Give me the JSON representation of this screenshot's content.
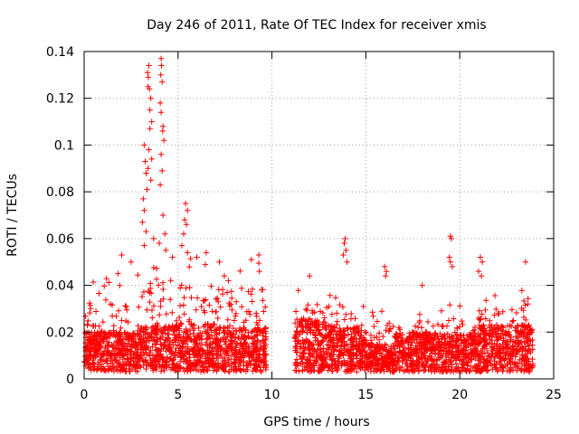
{
  "chart_data": {
    "type": "scatter",
    "title": "Day 246 of 2011, Rate Of TEC Index for receiver xmis",
    "xlabel": "GPS time / hours",
    "ylabel": "ROTI / TECUs",
    "xlim": [
      0,
      25
    ],
    "ylim": [
      0,
      0.14
    ],
    "xticks": [
      0,
      5,
      10,
      15,
      20,
      25
    ],
    "yticks": [
      0,
      0.02,
      0.04,
      0.06,
      0.08,
      0.1,
      0.12,
      0.14
    ],
    "xtick_labels": [
      "0",
      "5",
      "10",
      "15",
      "20",
      "25"
    ],
    "ytick_labels": [
      "0",
      "0.02",
      "0.04",
      "0.06",
      "0.08",
      "0.1",
      "0.12",
      "0.14"
    ],
    "grid": true,
    "marker": "+",
    "color": "#ff0000",
    "peaks": [
      {
        "x": 3.2,
        "y": 0.1
      },
      {
        "x": 3.25,
        "y": 0.093
      },
      {
        "x": 3.3,
        "y": 0.088
      },
      {
        "x": 3.15,
        "y": 0.077
      },
      {
        "x": 3.2,
        "y": 0.072
      },
      {
        "x": 3.1,
        "y": 0.067
      },
      {
        "x": 3.35,
        "y": 0.081
      },
      {
        "x": 3.5,
        "y": 0.107
      },
      {
        "x": 3.5,
        "y": 0.115
      },
      {
        "x": 3.45,
        "y": 0.098
      },
      {
        "x": 3.4,
        "y": 0.09
      },
      {
        "x": 3.6,
        "y": 0.094
      },
      {
        "x": 3.4,
        "y": 0.125
      },
      {
        "x": 3.42,
        "y": 0.129
      },
      {
        "x": 3.38,
        "y": 0.131
      },
      {
        "x": 3.45,
        "y": 0.134
      },
      {
        "x": 3.48,
        "y": 0.124
      },
      {
        "x": 3.55,
        "y": 0.12
      },
      {
        "x": 3.6,
        "y": 0.11
      },
      {
        "x": 3.55,
        "y": 0.085
      },
      {
        "x": 3.7,
        "y": 0.06
      },
      {
        "x": 3.3,
        "y": 0.063
      },
      {
        "x": 3.2,
        "y": 0.057
      },
      {
        "x": 4.1,
        "y": 0.137
      },
      {
        "x": 4.12,
        "y": 0.134
      },
      {
        "x": 4.08,
        "y": 0.13
      },
      {
        "x": 4.15,
        "y": 0.127
      },
      {
        "x": 4.05,
        "y": 0.118
      },
      {
        "x": 4.1,
        "y": 0.114
      },
      {
        "x": 4.2,
        "y": 0.108
      },
      {
        "x": 4.18,
        "y": 0.106
      },
      {
        "x": 4.25,
        "y": 0.102
      },
      {
        "x": 4.1,
        "y": 0.096
      },
      {
        "x": 4.15,
        "y": 0.089
      },
      {
        "x": 4.05,
        "y": 0.083
      },
      {
        "x": 4.2,
        "y": 0.07
      },
      {
        "x": 4.3,
        "y": 0.062
      },
      {
        "x": 4.0,
        "y": 0.058
      },
      {
        "x": 4.35,
        "y": 0.055
      },
      {
        "x": 5.4,
        "y": 0.075
      },
      {
        "x": 5.5,
        "y": 0.072
      },
      {
        "x": 5.35,
        "y": 0.068
      },
      {
        "x": 5.45,
        "y": 0.066
      },
      {
        "x": 5.3,
        "y": 0.062
      },
      {
        "x": 5.2,
        "y": 0.057
      },
      {
        "x": 5.5,
        "y": 0.054
      },
      {
        "x": 2.0,
        "y": 0.053
      },
      {
        "x": 2.5,
        "y": 0.05
      },
      {
        "x": 4.7,
        "y": 0.052
      },
      {
        "x": 6.0,
        "y": 0.052
      },
      {
        "x": 6.5,
        "y": 0.054
      },
      {
        "x": 7.2,
        "y": 0.05
      },
      {
        "x": 8.9,
        "y": 0.051
      },
      {
        "x": 9.3,
        "y": 0.053
      },
      {
        "x": 1.8,
        "y": 0.045
      },
      {
        "x": 13.9,
        "y": 0.06
      },
      {
        "x": 13.85,
        "y": 0.058
      },
      {
        "x": 13.95,
        "y": 0.055
      },
      {
        "x": 13.8,
        "y": 0.053
      },
      {
        "x": 14.0,
        "y": 0.05
      },
      {
        "x": 16.0,
        "y": 0.048
      },
      {
        "x": 16.1,
        "y": 0.046
      },
      {
        "x": 16.05,
        "y": 0.044
      },
      {
        "x": 19.5,
        "y": 0.061
      },
      {
        "x": 19.55,
        "y": 0.06
      },
      {
        "x": 19.45,
        "y": 0.052
      },
      {
        "x": 19.5,
        "y": 0.05
      },
      {
        "x": 19.6,
        "y": 0.048
      },
      {
        "x": 21.1,
        "y": 0.052
      },
      {
        "x": 21.2,
        "y": 0.05
      },
      {
        "x": 21.0,
        "y": 0.046
      },
      {
        "x": 21.15,
        "y": 0.044
      },
      {
        "x": 23.5,
        "y": 0.05
      },
      {
        "x": 12.0,
        "y": 0.044
      },
      {
        "x": 18.0,
        "y": 0.04
      }
    ],
    "segments": [
      {
        "x0": 0.0,
        "x1": 2.8,
        "base": 0.011,
        "max": 0.043
      },
      {
        "x0": 2.8,
        "x1": 5.0,
        "base": 0.014,
        "max": 0.05
      },
      {
        "x0": 5.0,
        "x1": 7.0,
        "base": 0.015,
        "max": 0.052
      },
      {
        "x0": 7.0,
        "x1": 9.7,
        "base": 0.013,
        "max": 0.05
      },
      {
        "x0": 11.2,
        "x1": 13.5,
        "base": 0.016,
        "max": 0.04
      },
      {
        "x0": 13.5,
        "x1": 15.0,
        "base": 0.013,
        "max": 0.042
      },
      {
        "x0": 15.0,
        "x1": 16.5,
        "base": 0.006,
        "max": 0.03
      },
      {
        "x0": 16.5,
        "x1": 19.0,
        "base": 0.011,
        "max": 0.03
      },
      {
        "x0": 19.0,
        "x1": 21.0,
        "base": 0.01,
        "max": 0.033
      },
      {
        "x0": 21.0,
        "x1": 23.9,
        "base": 0.014,
        "max": 0.038
      }
    ]
  }
}
